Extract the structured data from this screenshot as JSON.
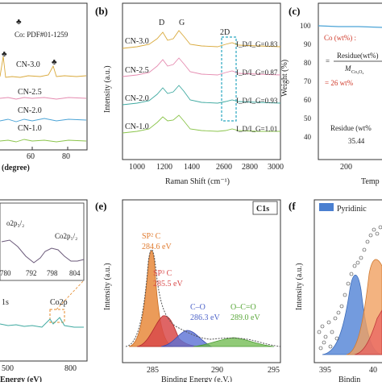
{
  "panel_a": {
    "ref": "Co: PDF#01-1259",
    "series": [
      "CN-3.0",
      "CN-2.5",
      "CN-2.0",
      "CN-1.0"
    ],
    "series_colors": [
      "#d9a93b",
      "#e58bb0",
      "#4aa3d6",
      "#8ac44a"
    ],
    "xlabel": "(degree)",
    "xticks": [
      "60",
      "80"
    ]
  },
  "panel_b": {
    "letter": "(b)",
    "ylabel": "Intensity (a.u.)",
    "xlabel": "Raman Shift (cm⁻¹)",
    "xticks": [
      "1000",
      "1200",
      "1400",
      "2600",
      "2800",
      "3000"
    ],
    "band_d": "D",
    "band_g": "G",
    "band_2d": "2D",
    "series": [
      {
        "name": "CN-3.0",
        "ratio": "I_D/I_G=0.83",
        "color": "#d9a93b"
      },
      {
        "name": "CN-2.5",
        "ratio": "I_D/I_G=0.87",
        "color": "#e58bb0"
      },
      {
        "name": "CN-2.0",
        "ratio": "I_D/I_G=0.93",
        "color": "#3ea9a0"
      },
      {
        "name": "CN-1.0",
        "ratio": "I_D/I_G=1.01",
        "color": "#8ac44a"
      }
    ]
  },
  "panel_c": {
    "letter": "(c)",
    "ylabel": "Weight (%)",
    "yticks": [
      "100",
      "90",
      "80",
      "70",
      "60",
      "50",
      "40"
    ],
    "xticks": [
      "200"
    ],
    "xlabel": "Temp",
    "formula_title": "Co (wt%) :",
    "formula_num": "Residue(wt%)",
    "formula_den": "M",
    "formula_den_sub": "Co₃O₄",
    "formula_result": "= 26 wt%",
    "residue_label": "Residue (wt%",
    "residue_value": "35.44"
  },
  "panel_d": {
    "inset_labels": [
      "o2p₃/₂",
      "Co2p₁/₂"
    ],
    "inset_ticks": [
      "780",
      "792",
      "798",
      "804"
    ],
    "peak_labels": [
      "1s",
      "Co2p"
    ],
    "xlabel": "Energy (eV)",
    "xticks": [
      "500",
      "800"
    ]
  },
  "panel_e": {
    "letter": "(e)",
    "tag": "C1s",
    "ylabel": "Intensity (a.u.)",
    "xlabel": "Binding Energy (e.V.)",
    "xticks": [
      "285",
      "290",
      "295"
    ],
    "peaks": [
      {
        "name": "SP² C",
        "ev": "284.6 eV",
        "color": "#e07b2f"
      },
      {
        "name": "SP³ C",
        "ev": "285.5 eV",
        "color": "#d94a4a"
      },
      {
        "name": "C–O",
        "ev": "286.3 eV",
        "color": "#4d63c9"
      },
      {
        "name": "O–C=O",
        "ev": "289.0 eV",
        "color": "#5aa83a"
      }
    ]
  },
  "panel_f": {
    "letter": "(f",
    "legend": "Pyridinic",
    "ylabel": "Intensity (a.u.)",
    "xlabel": "Bindin",
    "xticks": [
      "395",
      "40"
    ]
  }
}
